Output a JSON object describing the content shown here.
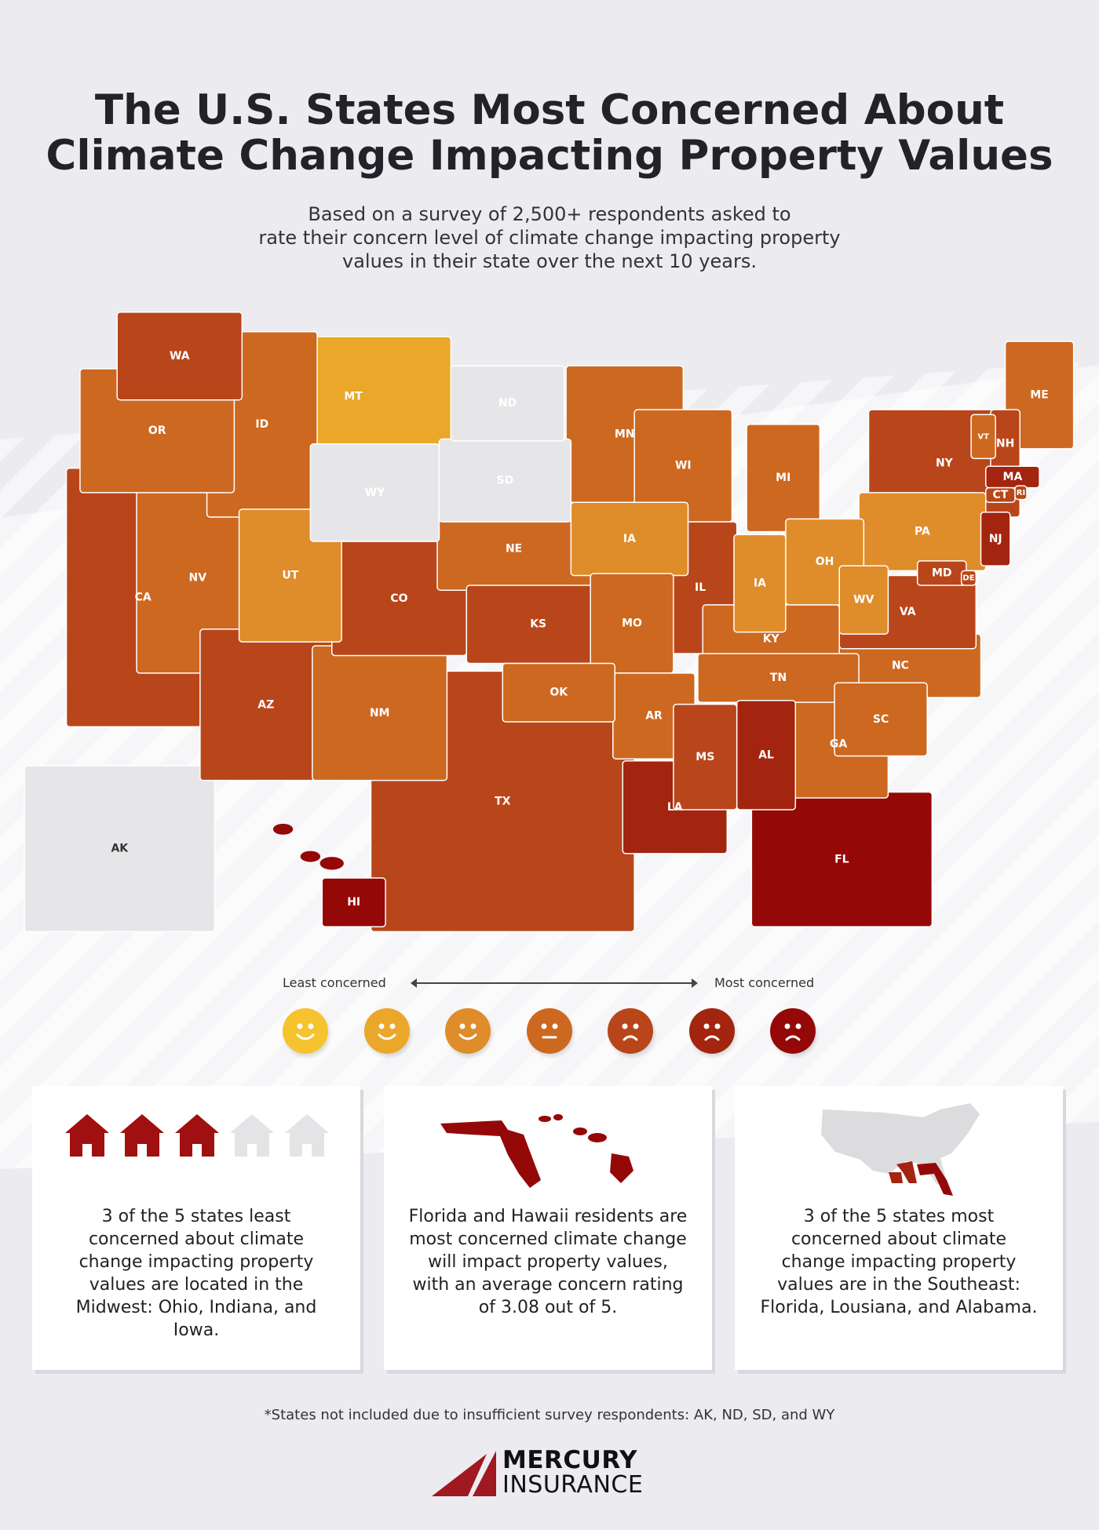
{
  "title_line1": "The U.S. States Most Concerned About",
  "title_line2": "Climate Change Impacting Property Values",
  "subtitle_line1": "Based on a survey of 2,500+ respondents asked to",
  "subtitle_line2": "rate their concern level of climate change impacting property",
  "subtitle_line3": "values in their state over the next 10 years.",
  "colors": {
    "levels": [
      "#f6c32f",
      "#eaa72a",
      "#df8c2a",
      "#cd6820",
      "#b8461a",
      "#a3240f",
      "#950808"
    ],
    "not_included": "#e6e6e9"
  },
  "states": [
    {
      "abbr": "WA",
      "level": 5
    },
    {
      "abbr": "OR",
      "level": 4
    },
    {
      "abbr": "CA",
      "level": 5
    },
    {
      "abbr": "NV",
      "level": 4
    },
    {
      "abbr": "ID",
      "level": 4
    },
    {
      "abbr": "MT",
      "level": 2
    },
    {
      "abbr": "WY",
      "level": 0
    },
    {
      "abbr": "UT",
      "level": 3
    },
    {
      "abbr": "CO",
      "level": 5
    },
    {
      "abbr": "AZ",
      "level": 5
    },
    {
      "abbr": "NM",
      "level": 4
    },
    {
      "abbr": "ND",
      "level": 0
    },
    {
      "abbr": "SD",
      "level": 0
    },
    {
      "abbr": "NE",
      "level": 4
    },
    {
      "abbr": "KS",
      "level": 5
    },
    {
      "abbr": "OK",
      "level": 4
    },
    {
      "abbr": "TX",
      "level": 5
    },
    {
      "abbr": "MN",
      "level": 4
    },
    {
      "abbr": "IA",
      "level": 3
    },
    {
      "abbr": "MO",
      "level": 4
    },
    {
      "abbr": "AR",
      "level": 4
    },
    {
      "abbr": "LA",
      "level": 6
    },
    {
      "abbr": "WI",
      "level": 4
    },
    {
      "abbr": "IL",
      "level": 5
    },
    {
      "abbr": "MI",
      "level": 4
    },
    {
      "abbr": "IA",
      "level": 3
    },
    {
      "abbr": "OH",
      "level": 3
    },
    {
      "abbr": "KY",
      "level": 4
    },
    {
      "abbr": "TN",
      "level": 4
    },
    {
      "abbr": "MS",
      "level": 5
    },
    {
      "abbr": "AL",
      "level": 6
    },
    {
      "abbr": "GA",
      "level": 4
    },
    {
      "abbr": "FL",
      "level": 7
    },
    {
      "abbr": "SC",
      "level": 4
    },
    {
      "abbr": "NC",
      "level": 4
    },
    {
      "abbr": "VA",
      "level": 5
    },
    {
      "abbr": "WV",
      "level": 3
    },
    {
      "abbr": "PA",
      "level": 3
    },
    {
      "abbr": "NY",
      "level": 5
    },
    {
      "abbr": "VT",
      "level": 4
    },
    {
      "abbr": "NH",
      "level": 5
    },
    {
      "abbr": "ME",
      "level": 4
    },
    {
      "abbr": "MA",
      "level": 6
    },
    {
      "abbr": "CT",
      "level": 5
    },
    {
      "abbr": "RI",
      "level": 5
    },
    {
      "abbr": "NJ",
      "level": 6
    },
    {
      "abbr": "DE",
      "level": 5
    },
    {
      "abbr": "MD",
      "level": 5
    },
    {
      "abbr": "AK",
      "level": 0
    },
    {
      "abbr": "HI",
      "level": 7
    }
  ],
  "legend": {
    "least_label": "Least concerned",
    "most_label": "Most concerned",
    "faces": [
      "smile",
      "smile",
      "smile",
      "neutral",
      "frown",
      "frown",
      "frown"
    ]
  },
  "cards": [
    {
      "icon": "house-icons",
      "text": "3 of the 5 states least concerned about climate change impacting property values are located in the Midwest: Ohio, Indiana, and Iowa."
    },
    {
      "icon": "florida-hawaii-map",
      "text": "Florida and Hawaii residents are most concerned climate change will impact property values, with an average concern rating of 3.08 out of 5."
    },
    {
      "icon": "us-map-southeast",
      "text": "3 of the 5 states most concerned about climate change impacting property values are in the Southeast: Florida, Lousiana, and Alabama."
    }
  ],
  "footnote": "*States not included due to insufficient survey respondents: AK, ND, SD, and WY",
  "logo": {
    "line1": "MERCURY",
    "line2": "INSURANCE",
    "color": "#a01820"
  }
}
